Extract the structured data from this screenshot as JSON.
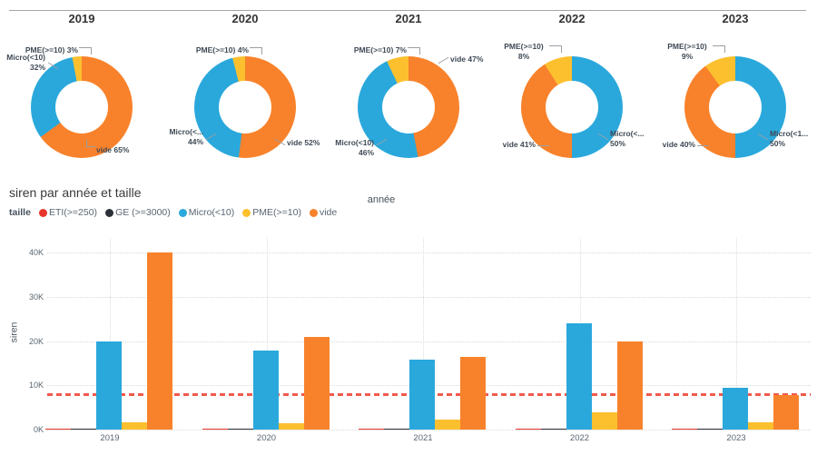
{
  "palette": {
    "eti": "#e6352a",
    "ge": "#2b3039",
    "micro": "#2aa8dc",
    "pme": "#fcc02f",
    "vide": "#f8822b",
    "reference": "#f05a4c"
  },
  "donut_section": {
    "panel_titles": [
      "2019",
      "2020",
      "2021",
      "2022",
      "2023"
    ],
    "donuts": [
      {
        "year": "2019",
        "slices": [
          {
            "key": "vide",
            "pct": 65
          },
          {
            "key": "micro",
            "pct": 32
          },
          {
            "key": "pme",
            "pct": 3
          }
        ],
        "callouts": {
          "pme": "PME(>=10) 3%",
          "micro": "Micro(<10)\n32%",
          "vide": "vide 65%"
        }
      },
      {
        "year": "2020",
        "slices": [
          {
            "key": "vide",
            "pct": 52
          },
          {
            "key": "micro",
            "pct": 44
          },
          {
            "key": "pme",
            "pct": 4
          }
        ],
        "callouts": {
          "pme": "PME(>=10) 4%",
          "micro": "Micro(<...\n44%",
          "vide": "vide 52%"
        }
      },
      {
        "year": "2021",
        "slices": [
          {
            "key": "vide",
            "pct": 47
          },
          {
            "key": "micro",
            "pct": 46
          },
          {
            "key": "pme",
            "pct": 7
          }
        ],
        "callouts": {
          "pme": "PME(>=10) 7%",
          "vide": "vide 47%",
          "micro": "Micro(<10)\n46%"
        }
      },
      {
        "year": "2022",
        "slices": [
          {
            "key": "micro",
            "pct": 50
          },
          {
            "key": "vide",
            "pct": 41
          },
          {
            "key": "pme",
            "pct": 8
          }
        ],
        "callouts": {
          "pme": "PME(>=10)\n8%",
          "micro": "Micro(<...\n50%",
          "vide": "vide 41%"
        }
      },
      {
        "year": "2023",
        "slices": [
          {
            "key": "micro",
            "pct": 50
          },
          {
            "key": "vide",
            "pct": 40
          },
          {
            "key": "pme",
            "pct": 9
          }
        ],
        "callouts": {
          "pme": "PME(>=10)\n9%",
          "micro": "Micro(<1...\n50%",
          "vide": "vide 40%"
        }
      }
    ]
  },
  "bar_section": {
    "title": "siren par année et taille",
    "legend_title": "taille",
    "legend": [
      {
        "key": "eti",
        "label": "ETI(>=250)"
      },
      {
        "key": "ge",
        "label": "GE (>=3000)"
      },
      {
        "key": "micro",
        "label": "Micro(<10)"
      },
      {
        "key": "pme",
        "label": "PME(>=10)"
      },
      {
        "key": "vide",
        "label": "vide"
      }
    ],
    "xlabel": "année",
    "ylabel": "siren",
    "y_ticks": [
      "0K",
      "10K",
      "20K",
      "30K",
      "40K"
    ]
  },
  "chart_data": [
    {
      "type": "pie",
      "title": "2019",
      "labels": [
        "vide",
        "Micro(<10)",
        "PME(>=10)"
      ],
      "values": [
        65,
        32,
        3
      ],
      "unit": "%"
    },
    {
      "type": "pie",
      "title": "2020",
      "labels": [
        "vide",
        "Micro(<10)",
        "PME(>=10)"
      ],
      "values": [
        52,
        44,
        4
      ],
      "unit": "%"
    },
    {
      "type": "pie",
      "title": "2021",
      "labels": [
        "vide",
        "Micro(<10)",
        "PME(>=10)"
      ],
      "values": [
        47,
        46,
        7
      ],
      "unit": "%"
    },
    {
      "type": "pie",
      "title": "2022",
      "labels": [
        "Micro(<10)",
        "vide",
        "PME(>=10)"
      ],
      "values": [
        50,
        41,
        8
      ],
      "unit": "%"
    },
    {
      "type": "pie",
      "title": "2023",
      "labels": [
        "Micro(<10)",
        "vide",
        "PME(>=10)"
      ],
      "values": [
        50,
        40,
        9
      ],
      "unit": "%"
    },
    {
      "type": "bar",
      "title": "siren par année et taille",
      "categories": [
        "2019",
        "2020",
        "2021",
        "2022",
        "2023"
      ],
      "series": [
        {
          "key": "eti",
          "name": "ETI(>=250)",
          "values": [
            300,
            300,
            300,
            300,
            300
          ]
        },
        {
          "key": "ge",
          "name": "GE (>=3000)",
          "values": [
            150,
            150,
            150,
            150,
            150
          ]
        },
        {
          "key": "micro",
          "name": "Micro(<10)",
          "values": [
            20000,
            17900,
            15900,
            24000,
            9500
          ]
        },
        {
          "key": "pme",
          "name": "PME(>=10)",
          "values": [
            1600,
            1500,
            2300,
            4000,
            1600
          ]
        },
        {
          "key": "vide",
          "name": "vide",
          "values": [
            40000,
            21000,
            16400,
            19800,
            7800
          ]
        }
      ],
      "xlabel": "année",
      "ylabel": "siren",
      "ylim": [
        0,
        42000
      ],
      "y_tick_values": [
        0,
        10000,
        20000,
        30000,
        40000
      ],
      "reference_line": 8000,
      "grid": "dotted",
      "legend_position": "top"
    }
  ]
}
